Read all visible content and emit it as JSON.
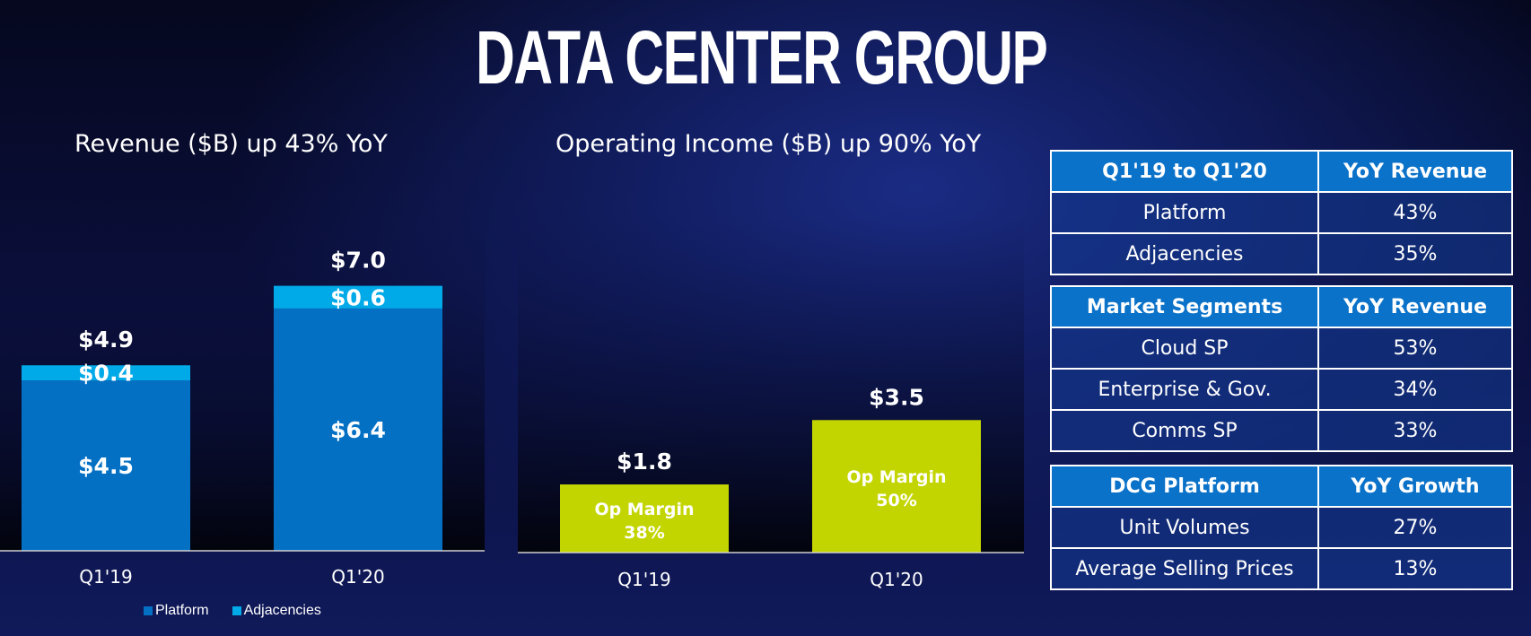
{
  "title": "DATA CENTER GROUP",
  "colors": {
    "platform": "#0470c4",
    "adjacencies": "#00a9e7",
    "op_income": "#c3d500"
  },
  "chart_data": [
    {
      "type": "bar",
      "title": "Revenue ($B) up 43% YoY",
      "stacked": true,
      "categories": [
        "Q1'19",
        "Q1'20"
      ],
      "series": [
        {
          "name": "Platform",
          "values": [
            4.5,
            6.4
          ],
          "labels": [
            "$4.5",
            "$6.4"
          ]
        },
        {
          "name": "Adjacencies",
          "values": [
            0.4,
            0.6
          ],
          "labels": [
            "$0.4",
            "$0.6"
          ]
        }
      ],
      "totals": [
        4.9,
        7.0
      ],
      "total_labels": [
        "$4.9",
        "$7.0"
      ],
      "legend": "bottom-left",
      "ylim": [
        0,
        7.8
      ]
    },
    {
      "type": "bar",
      "title": "Operating Income ($B) up 90% YoY",
      "categories": [
        "Q1'19",
        "Q1'20"
      ],
      "values": [
        1.8,
        3.5
      ],
      "value_labels": [
        "$1.8",
        "$3.5"
      ],
      "annotations": [
        {
          "line1": "Op Margin",
          "line2": "38%"
        },
        {
          "line1": "Op Margin",
          "line2": "50%"
        }
      ],
      "ylim": [
        0,
        7.8
      ]
    }
  ],
  "tables": [
    {
      "headers": [
        "Q1'19 to Q1'20",
        "YoY Revenue"
      ],
      "rows": [
        [
          "Platform",
          "43%"
        ],
        [
          "Adjacencies",
          "35%"
        ]
      ]
    },
    {
      "headers": [
        "Market Segments",
        "YoY Revenue"
      ],
      "rows": [
        [
          "Cloud SP",
          "53%"
        ],
        [
          "Enterprise & Gov.",
          "34%"
        ],
        [
          "Comms SP",
          "33%"
        ]
      ]
    },
    {
      "headers": [
        "DCG Platform",
        "YoY Growth"
      ],
      "rows": [
        [
          "Unit Volumes",
          "27%"
        ],
        [
          "Average Selling Prices",
          "13%"
        ]
      ]
    }
  ],
  "legend": [
    {
      "name": "Platform",
      "color": "#0470c4"
    },
    {
      "name": "Adjacencies",
      "color": "#00a9e7"
    }
  ]
}
